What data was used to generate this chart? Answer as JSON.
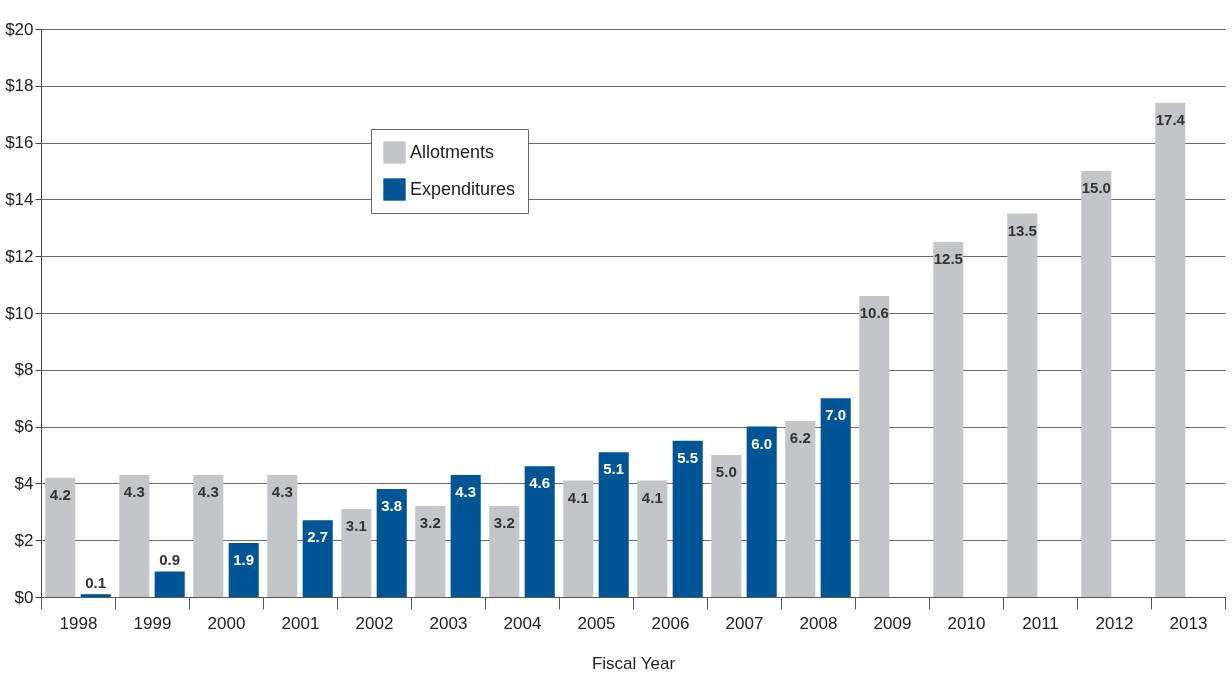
{
  "chart_data": {
    "type": "bar",
    "xlabel": "Fiscal Year",
    "categories": [
      "1998",
      "1999",
      "2000",
      "2001",
      "2002",
      "2003",
      "2004",
      "2005",
      "2006",
      "2007",
      "2008",
      "2009",
      "2010",
      "2011",
      "2012",
      "2013"
    ],
    "series": [
      {
        "name": "Allotments",
        "color": "#c4c5c8",
        "values": [
          4.2,
          4.3,
          4.3,
          4.3,
          3.1,
          3.2,
          3.2,
          4.1,
          4.1,
          5.0,
          6.2,
          10.6,
          12.5,
          13.5,
          15.0,
          17.4
        ],
        "value_labels": [
          "4.2",
          "4.3",
          "4.3",
          "4.3",
          "3.1",
          "3.2",
          "3.2",
          "4.1",
          "4.1",
          "5.0",
          "6.2",
          "10.6",
          "12.5",
          "13.5",
          "15.0",
          "17.4"
        ]
      },
      {
        "name": "Expenditures",
        "color": "#005596",
        "values": [
          0.1,
          0.9,
          1.9,
          2.7,
          3.8,
          4.3,
          4.6,
          5.1,
          5.5,
          6.0,
          7.0,
          null,
          null,
          null,
          null,
          null
        ],
        "value_labels": [
          "0.1",
          "0.9",
          "1.9",
          "2.7",
          "3.8",
          "4.3",
          "4.6",
          "5.1",
          "5.5",
          "6.0",
          "7.0",
          null,
          null,
          null,
          null,
          null
        ]
      }
    ],
    "ylim": [
      0,
      20
    ],
    "yticks": [
      {
        "value": 0,
        "label": "$0"
      },
      {
        "value": 2,
        "label": "$2"
      },
      {
        "value": 4,
        "label": "$4"
      },
      {
        "value": 6,
        "label": "$6"
      },
      {
        "value": 8,
        "label": "$8"
      },
      {
        "value": 10,
        "label": "$10"
      },
      {
        "value": 12,
        "label": "$12"
      },
      {
        "value": 14,
        "label": "$14"
      },
      {
        "value": 16,
        "label": "$16"
      },
      {
        "value": 18,
        "label": "$18"
      },
      {
        "value": 20,
        "label": "$20"
      }
    ],
    "grid": "y",
    "legend": "top left"
  }
}
